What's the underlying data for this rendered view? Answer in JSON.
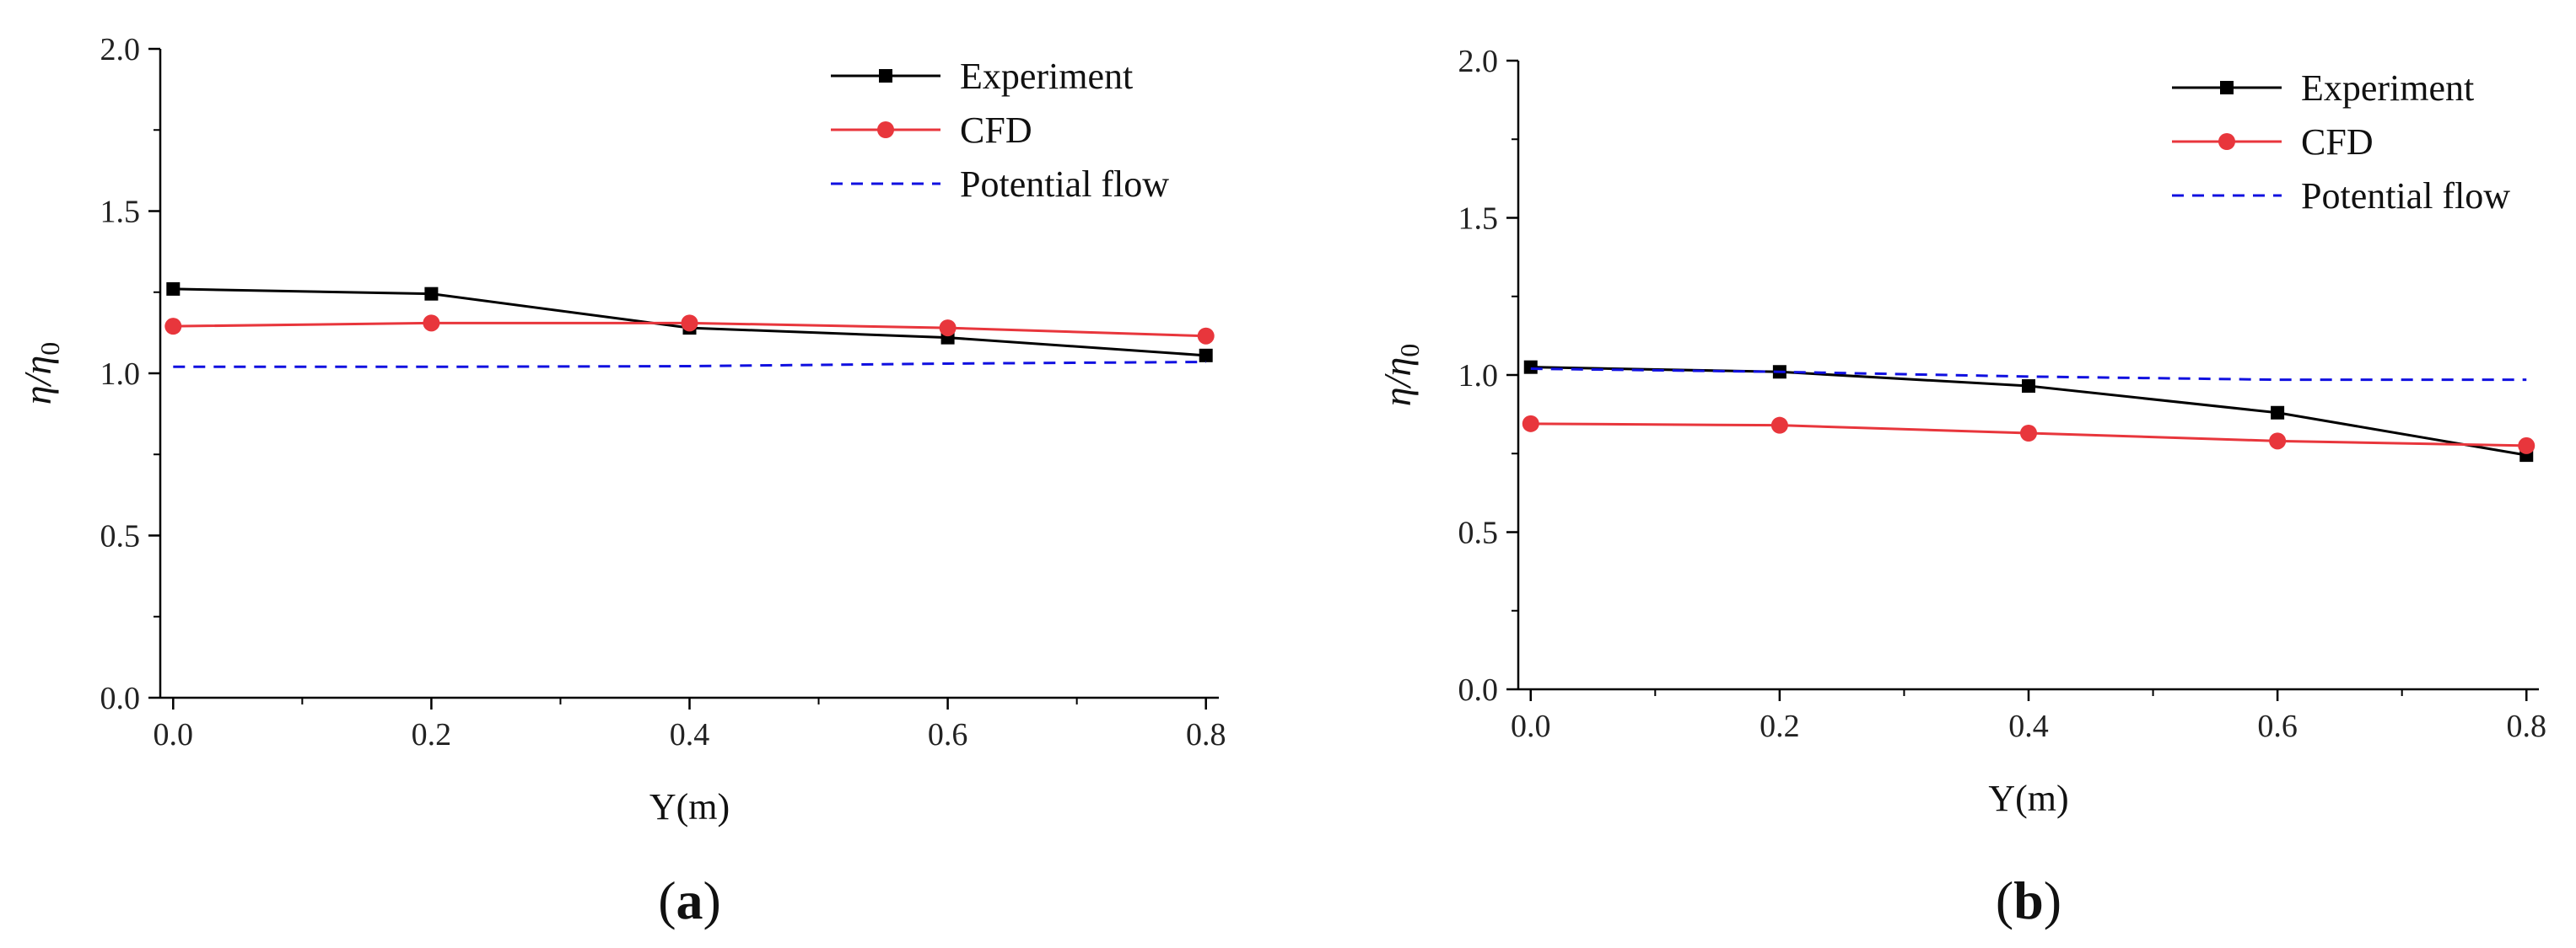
{
  "chart_data": [
    {
      "type": "line",
      "panel_label": "a",
      "xlabel": "Y(m)",
      "ylabel": {
        "main": "η/η",
        "subscript": "0"
      },
      "x": [
        0.0,
        0.2,
        0.4,
        0.6,
        0.8
      ],
      "xlim": [
        -0.01,
        0.81
      ],
      "ylim": [
        0.0,
        2.0
      ],
      "xticks": [
        "0.0",
        "0.2",
        "0.4",
        "0.6",
        "0.8"
      ],
      "yticks": [
        "0.0",
        "0.5",
        "1.0",
        "1.5",
        "2.0"
      ],
      "legend_position": "top-right",
      "series": [
        {
          "name": "Experiment",
          "color": "#000000",
          "marker": "square",
          "dash": "solid",
          "values": [
            1.26,
            1.245,
            1.14,
            1.11,
            1.055
          ]
        },
        {
          "name": "CFD",
          "color": "#e8363c",
          "marker": "circle",
          "dash": "solid",
          "values": [
            1.145,
            1.155,
            1.155,
            1.14,
            1.115
          ]
        },
        {
          "name": "Potential flow",
          "color": "#1010e0",
          "marker": "none",
          "dash": "dashed",
          "values": [
            1.02,
            1.02,
            1.022,
            1.03,
            1.035
          ]
        }
      ]
    },
    {
      "type": "line",
      "panel_label": "b",
      "xlabel": "Y(m)",
      "ylabel": {
        "main": "η/η",
        "subscript": "0"
      },
      "x": [
        0.0,
        0.2,
        0.4,
        0.6,
        0.8
      ],
      "xlim": [
        -0.01,
        0.81
      ],
      "ylim": [
        0.0,
        2.0
      ],
      "xticks": [
        "0.0",
        "0.2",
        "0.4",
        "0.6",
        "0.8"
      ],
      "yticks": [
        "0.0",
        "0.5",
        "1.0",
        "1.5",
        "2.0"
      ],
      "legend_position": "top-right",
      "series": [
        {
          "name": "Experiment",
          "color": "#000000",
          "marker": "square",
          "dash": "solid",
          "values": [
            1.025,
            1.01,
            0.965,
            0.88,
            0.745
          ]
        },
        {
          "name": "CFD",
          "color": "#e8363c",
          "marker": "circle",
          "dash": "solid",
          "values": [
            0.845,
            0.84,
            0.815,
            0.79,
            0.775
          ]
        },
        {
          "name": "Potential flow",
          "color": "#1010e0",
          "marker": "none",
          "dash": "dashed",
          "values": [
            1.02,
            1.01,
            0.995,
            0.985,
            0.985
          ]
        }
      ]
    }
  ]
}
